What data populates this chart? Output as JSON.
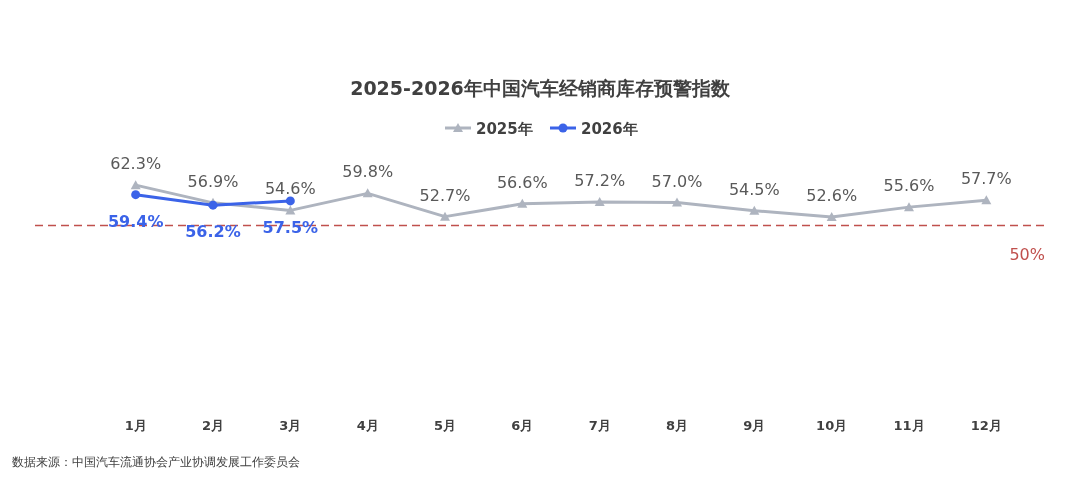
{
  "chart_data": {
    "type": "line",
    "title": "2025-2026年中国汽车经销商库存预警指数",
    "categories": [
      "1月",
      "2月",
      "3月",
      "4月",
      "5月",
      "6月",
      "7月",
      "8月",
      "9月",
      "10月",
      "11月",
      "12月"
    ],
    "series": [
      {
        "name": "2025年",
        "color": "#aeb4bf",
        "marker": "triangle",
        "values": [
          62.3,
          56.9,
          54.6,
          59.8,
          52.7,
          56.6,
          57.2,
          57.0,
          54.5,
          52.6,
          55.6,
          57.7
        ],
        "value_labels": [
          "62.3%",
          "56.9%",
          "54.6%",
          "59.8%",
          "52.7%",
          "56.6%",
          "57.2%",
          "57.0%",
          "54.5%",
          "52.6%",
          "55.6%",
          "57.7%"
        ]
      },
      {
        "name": "2026年",
        "color": "#3b63e8",
        "marker": "circle",
        "values": [
          59.4,
          56.2,
          57.5,
          null,
          null,
          null,
          null,
          null,
          null,
          null,
          null,
          null
        ],
        "value_labels": [
          "59.4%",
          "56.2%",
          "57.5%",
          null,
          null,
          null,
          null,
          null,
          null,
          null,
          null,
          null
        ]
      }
    ],
    "legend": "top",
    "ref_lines": [
      {
        "axis": "y",
        "value": 50,
        "label": "50%",
        "color": "#c0504d",
        "line_style": "dashed"
      }
    ],
    "annotations": [
      "数据来源：中国汽车流通协会产业协调发展工作委员会"
    ]
  }
}
